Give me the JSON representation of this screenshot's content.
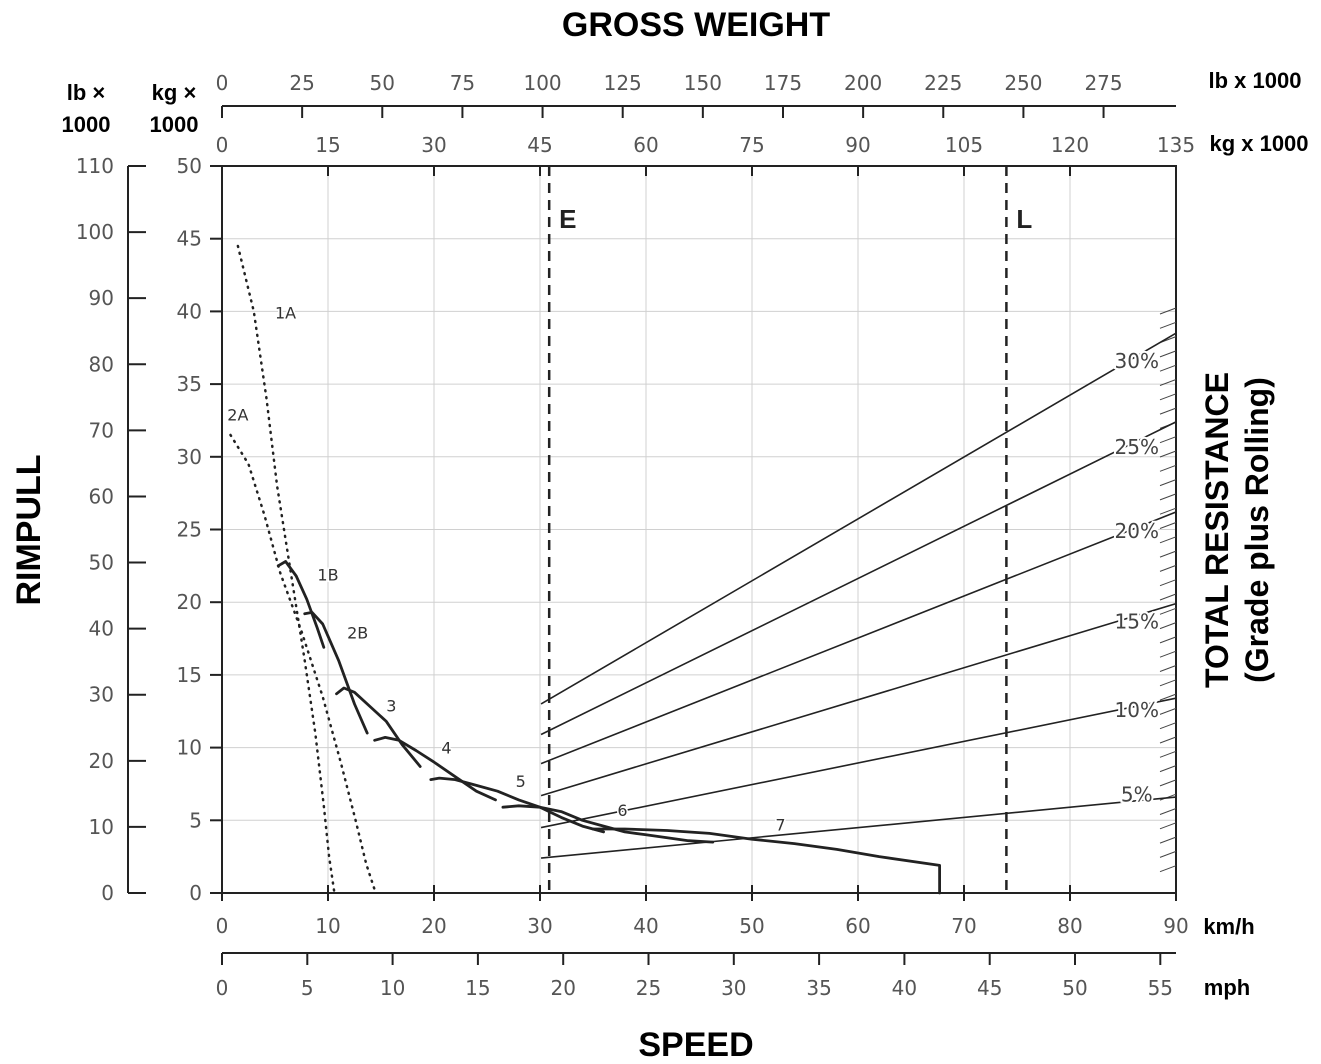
{
  "chart_data": {
    "type": "line",
    "title": "GROSS WEIGHT",
    "xlabel": "SPEED",
    "ylabel": "RIMPULL",
    "right_label": "TOTAL RESISTANCE",
    "right_sublabel": "(Grade plus Rolling)",
    "units": {
      "rimpull_lb": "lb ×\n1000",
      "rimpull_lb_line1": "lb ×",
      "rimpull_lb_line2": "1000",
      "rimpull_kg_line1": "kg ×",
      "rimpull_kg_line2": "1000",
      "gross_lb": "lb x 1000",
      "gross_kg": "kg x 1000",
      "speed_kmh": "km/h",
      "speed_mph": "mph"
    },
    "axes": {
      "speed_kmh": {
        "range": [
          0,
          90
        ],
        "ticks": [
          "0",
          "10",
          "20",
          "30",
          "40",
          "50",
          "60",
          "70",
          "80",
          "90"
        ]
      },
      "speed_mph": {
        "range": [
          0,
          55.92
        ],
        "ticks": [
          "0",
          "5",
          "10",
          "15",
          "20",
          "25",
          "30",
          "35",
          "40",
          "45",
          "50",
          "55"
        ]
      },
      "rimpull_kg": {
        "range": [
          0,
          50
        ],
        "ticks": [
          "0",
          "5",
          "10",
          "15",
          "20",
          "25",
          "30",
          "35",
          "40",
          "45",
          "50"
        ]
      },
      "rimpull_lb": {
        "range": [
          0,
          110
        ],
        "ticks": [
          "0",
          "10",
          "20",
          "30",
          "40",
          "50",
          "60",
          "70",
          "80",
          "90",
          "100",
          "110"
        ]
      },
      "gross_kg": {
        "range": [
          0,
          135
        ],
        "ticks": [
          "0",
          "15",
          "30",
          "45",
          "60",
          "75",
          "90",
          "105",
          "120",
          "135"
        ]
      },
      "gross_lb": {
        "range": [
          0,
          297.6
        ],
        "ticks": [
          "0",
          "25",
          "50",
          "75",
          "100",
          "125",
          "150",
          "175",
          "200",
          "225",
          "250",
          "275"
        ]
      }
    },
    "grid": true,
    "markers": [
      {
        "label": "E",
        "gross_kg": 46.3
      },
      {
        "label": "L",
        "gross_kg": 111
      }
    ],
    "gear_series": [
      {
        "name": "1A",
        "style": "dotted",
        "label_at": [
          5,
          39.5
        ],
        "points": [
          [
            1.5,
            44.5
          ],
          [
            3,
            40
          ],
          [
            4.2,
            34
          ],
          [
            5.2,
            28
          ],
          [
            6.5,
            22
          ],
          [
            7.8,
            16
          ],
          [
            8.8,
            11
          ],
          [
            9.6,
            6
          ],
          [
            10.1,
            2.5
          ],
          [
            10.6,
            0
          ]
        ]
      },
      {
        "name": "2A",
        "style": "dotted",
        "label_at": [
          0.5,
          32.5
        ],
        "points": [
          [
            0.8,
            31.5
          ],
          [
            2.5,
            29.5
          ],
          [
            4,
            26
          ],
          [
            5.5,
            22
          ],
          [
            7.5,
            18
          ],
          [
            9.5,
            13.5
          ],
          [
            11.2,
            9
          ],
          [
            12.6,
            5
          ],
          [
            13.6,
            2
          ],
          [
            14.5,
            0
          ]
        ]
      },
      {
        "name": "1B",
        "style": "solid",
        "label_at": [
          9,
          21.5
        ],
        "points": [
          [
            5.3,
            22.5
          ],
          [
            6,
            22.8
          ],
          [
            7,
            21.8
          ],
          [
            8,
            20.2
          ],
          [
            9,
            18.2
          ],
          [
            9.6,
            16.9
          ]
        ]
      },
      {
        "name": "2B",
        "style": "solid",
        "label_at": [
          11.8,
          17.5
        ],
        "points": [
          [
            7.8,
            19.2
          ],
          [
            8.5,
            19.3
          ],
          [
            9.5,
            18.5
          ],
          [
            11,
            16
          ],
          [
            12.5,
            13
          ],
          [
            13.7,
            11
          ]
        ]
      },
      {
        "name": "3",
        "style": "solid",
        "label_at": [
          15.5,
          12.5
        ],
        "points": [
          [
            10.8,
            13.7
          ],
          [
            11.5,
            14.1
          ],
          [
            12.5,
            13.8
          ],
          [
            14,
            12.8
          ],
          [
            15.5,
            11.8
          ],
          [
            17,
            10.2
          ],
          [
            18.7,
            8.7
          ]
        ]
      },
      {
        "name": "4",
        "style": "solid",
        "label_at": [
          20.7,
          9.6
        ],
        "points": [
          [
            14.4,
            10.5
          ],
          [
            15.4,
            10.7
          ],
          [
            16.7,
            10.5
          ],
          [
            18.3,
            9.8
          ],
          [
            20,
            9
          ],
          [
            22,
            8
          ],
          [
            24,
            7
          ],
          [
            25.8,
            6.4
          ]
        ]
      },
      {
        "name": "5",
        "style": "solid",
        "label_at": [
          27.7,
          7.3
        ],
        "points": [
          [
            19.7,
            7.8
          ],
          [
            20.5,
            7.9
          ],
          [
            22,
            7.8
          ],
          [
            24,
            7.4
          ],
          [
            26,
            7
          ],
          [
            28,
            6.4
          ],
          [
            30,
            5.9
          ],
          [
            32,
            5.2
          ],
          [
            34,
            4.6
          ],
          [
            36,
            4.2
          ]
        ]
      },
      {
        "name": "6",
        "style": "solid",
        "label_at": [
          37.3,
          5.3
        ],
        "points": [
          [
            26.5,
            5.9
          ],
          [
            28,
            6
          ],
          [
            30,
            5.9
          ],
          [
            32,
            5.6
          ],
          [
            34,
            5
          ],
          [
            36,
            4.6
          ],
          [
            38,
            4.2
          ],
          [
            40,
            4
          ],
          [
            42,
            3.8
          ],
          [
            44,
            3.6
          ],
          [
            46.3,
            3.5
          ]
        ]
      },
      {
        "name": "7",
        "style": "solid",
        "label_at": [
          52.2,
          4.3
        ],
        "points": [
          [
            35,
            4.4
          ],
          [
            38,
            4.4
          ],
          [
            42,
            4.3
          ],
          [
            46,
            4.1
          ],
          [
            50,
            3.7
          ],
          [
            54,
            3.4
          ],
          [
            58,
            3
          ],
          [
            62,
            2.5
          ],
          [
            67.7,
            1.9
          ],
          [
            67.7,
            0
          ]
        ]
      }
    ],
    "resistance_lines": [
      {
        "name": "30%",
        "label": "30%",
        "label_at": [
          84.2,
          36.1
        ],
        "start": [
          30.1,
          13
        ],
        "end": [
          90,
          38.5
        ]
      },
      {
        "name": "25%",
        "label": "25%",
        "label_at": [
          84.2,
          30.2
        ],
        "start": [
          30.1,
          10.9
        ],
        "end": [
          90,
          32.4
        ]
      },
      {
        "name": "20%",
        "label": "20%",
        "label_at": [
          84.2,
          24.4
        ],
        "start": [
          30.1,
          8.9
        ],
        "end": [
          90,
          26.2
        ]
      },
      {
        "name": "15%",
        "label": "15%",
        "label_at": [
          84.2,
          18.2
        ],
        "start": [
          30.1,
          6.7
        ],
        "end": [
          90,
          19.9
        ]
      },
      {
        "name": "10%",
        "label": "10%",
        "label_at": [
          84.2,
          12.1
        ],
        "start": [
          30.1,
          4.5
        ],
        "end": [
          90,
          13.4
        ]
      },
      {
        "name": "5%",
        "label": "5%",
        "label_at": [
          84.8,
          6.3
        ],
        "start": [
          30.1,
          2.4
        ],
        "end": [
          90,
          6.6
        ]
      }
    ]
  }
}
